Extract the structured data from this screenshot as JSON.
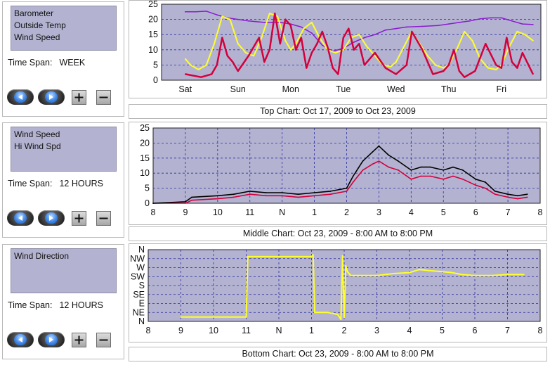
{
  "panels": [
    {
      "series_labels": [
        "Barometer",
        "Outside Temp",
        "Wind Speed"
      ],
      "time_span_label": "Time Span:",
      "time_span_value": "WEEK"
    },
    {
      "series_labels": [
        "Wind Speed",
        "Hi Wind Spd"
      ],
      "time_span_label": "Time Span:",
      "time_span_value": "12 HOURS"
    },
    {
      "series_labels": [
        "Wind Direction"
      ],
      "time_span_label": "Time Span:",
      "time_span_value": "12 HOURS"
    }
  ],
  "captions": {
    "top": "Top Chart:  Oct 17, 2009  to  Oct 23, 2009",
    "middle": "Middle Chart:  Oct 23, 2009 - 8:00 AM  to  8:00 PM",
    "bottom": "Bottom Chart:  Oct 23, 2009 - 8:00 AM  to  8:00 PM"
  },
  "colors": {
    "plot_bg": "#b3b3d1",
    "grid": "#2a2aa0",
    "barometer": "#8a1bd0",
    "outside_temp": "#ffff2a",
    "wind_speed": "#d4003c",
    "hi_wind": "#000000",
    "wind_direction": "#ffff2a"
  },
  "icons": {
    "prev": "left-arrow-icon",
    "next": "right-arrow-icon",
    "plus": "plus-icon",
    "minus": "minus-icon"
  },
  "chart_data": [
    {
      "type": "line",
      "x_tick_labels": [
        "Sat",
        "Sun",
        "Mon",
        "Tue",
        "Wed",
        "Thu",
        "Fri"
      ],
      "ylim": [
        0,
        25
      ],
      "y_ticks": [
        0,
        5,
        10,
        15,
        20,
        25
      ],
      "series": [
        {
          "name": "Barometer",
          "x": [
            0,
            0.2,
            0.4,
            0.6,
            0.8,
            1,
            1.2,
            1.5,
            1.8,
            2,
            2.2,
            2.4,
            2.6,
            2.8,
            3,
            3.2,
            3.4,
            3.6,
            3.8,
            4,
            4.2,
            4.5,
            4.8,
            5,
            5.2,
            5.4,
            5.6,
            5.8,
            6,
            6.2,
            6.4,
            6.6
          ],
          "values": [
            22.5,
            22.5,
            22.7,
            21.5,
            20.5,
            20,
            19.5,
            19,
            19,
            18.5,
            17.5,
            15.5,
            11.5,
            9.5,
            10.5,
            12.5,
            14,
            15,
            16.5,
            17,
            17.5,
            17.7,
            18,
            18.5,
            19,
            19.5,
            20.2,
            20.5,
            20.5,
            19.5,
            18.5,
            18.3
          ]
        },
        {
          "name": "Outside Temp",
          "x": [
            0,
            0.1,
            0.25,
            0.4,
            0.55,
            0.7,
            0.85,
            1,
            1.15,
            1.3,
            1.45,
            1.6,
            1.75,
            1.9,
            2,
            2.1,
            2.25,
            2.4,
            2.55,
            2.7,
            2.85,
            3,
            3.15,
            3.3,
            3.45,
            3.6,
            3.75,
            3.9,
            4,
            4.15,
            4.3,
            4.45,
            4.6,
            4.75,
            4.9,
            5,
            5.15,
            5.3,
            5.45,
            5.6,
            5.75,
            5.9,
            6,
            6.15,
            6.3,
            6.45,
            6.6
          ],
          "values": [
            7,
            5,
            3.5,
            5,
            12,
            21,
            20,
            12,
            9,
            8,
            14,
            22,
            21,
            13,
            10,
            12,
            17,
            19,
            14,
            10,
            9,
            10,
            14,
            15,
            11,
            8,
            5,
            4.5,
            6,
            11,
            16,
            12,
            8,
            5,
            4,
            5,
            10,
            16,
            13,
            7,
            4,
            3.5,
            5,
            11,
            16,
            15,
            13
          ]
        },
        {
          "name": "Wind Speed",
          "x": [
            0,
            0.3,
            0.5,
            0.6,
            0.7,
            0.8,
            0.9,
            1,
            1.2,
            1.4,
            1.5,
            1.6,
            1.7,
            1.8,
            1.9,
            2,
            2.1,
            2.2,
            2.3,
            2.4,
            2.5,
            2.6,
            2.7,
            2.8,
            2.9,
            3,
            3.1,
            3.2,
            3.3,
            3.4,
            3.6,
            3.8,
            4,
            4.2,
            4.3,
            4.5,
            4.7,
            4.9,
            5,
            5.1,
            5.2,
            5.3,
            5.5,
            5.7,
            5.9,
            6,
            6.1,
            6.2,
            6.3,
            6.4,
            6.6
          ],
          "values": [
            2,
            1,
            2,
            5,
            14,
            8,
            6,
            3,
            8,
            14,
            6,
            10,
            22,
            12,
            20,
            18,
            10,
            14,
            4,
            9,
            12,
            16,
            11,
            4,
            2,
            14,
            17,
            10,
            12,
            5,
            9,
            4,
            2,
            5,
            16,
            10,
            2,
            3,
            5,
            10,
            3,
            1,
            3,
            12,
            5,
            4,
            14,
            6,
            4,
            9,
            2
          ]
        }
      ]
    },
    {
      "type": "line",
      "x_tick_labels": [
        "8",
        "9",
        "10",
        "11",
        "N",
        "1",
        "2",
        "3",
        "4",
        "5",
        "6",
        "7",
        "8"
      ],
      "ylim": [
        0,
        25
      ],
      "y_ticks": [
        0,
        5,
        10,
        15,
        20,
        25
      ],
      "series": [
        {
          "name": "Wind Speed",
          "x": [
            8,
            9,
            9.2,
            10,
            10.5,
            11,
            11.5,
            12,
            12.5,
            13,
            13.5,
            14,
            14.2,
            14.5,
            14.8,
            15,
            15.3,
            15.6,
            16,
            16.3,
            16.6,
            17,
            17.3,
            17.6,
            18,
            18.3,
            18.6,
            19,
            19.3,
            19.6
          ],
          "values": [
            0,
            0,
            1,
            1.5,
            2,
            3,
            2.5,
            2.5,
            2,
            2.5,
            3,
            4,
            7,
            11,
            13,
            14,
            12,
            11,
            8,
            9,
            9,
            8,
            9,
            8,
            6,
            5,
            3,
            2,
            1.5,
            2
          ]
        },
        {
          "name": "Hi Wind Spd",
          "x": [
            8,
            9,
            9.2,
            10,
            10.5,
            11,
            11.5,
            12,
            12.5,
            13,
            13.5,
            14,
            14.2,
            14.5,
            14.8,
            15,
            15.3,
            15.6,
            16,
            16.3,
            16.6,
            17,
            17.3,
            17.6,
            18,
            18.3,
            18.6,
            19,
            19.3,
            19.6
          ],
          "values": [
            0,
            0.5,
            2,
            2.5,
            3,
            4,
            3.5,
            3.5,
            3,
            3.5,
            4,
            5,
            9,
            14,
            17,
            19,
            16,
            14,
            11,
            12,
            12,
            11,
            12,
            11,
            8,
            7,
            4,
            3,
            2.5,
            3
          ]
        }
      ]
    },
    {
      "type": "line",
      "x_tick_labels": [
        "8",
        "9",
        "10",
        "11",
        "N",
        "1",
        "2",
        "3",
        "4",
        "5",
        "6",
        "7",
        "8"
      ],
      "y_tick_labels": [
        "N",
        "NE",
        "E",
        "SE",
        "S",
        "SW",
        "W",
        "NW",
        "N"
      ],
      "ylim": [
        0,
        360
      ],
      "series": [
        {
          "name": "Wind Direction",
          "x": [
            9,
            11,
            11.05,
            11.5,
            12,
            12.5,
            13,
            13.05,
            13.1,
            13.5,
            13.8,
            13.9,
            13.95,
            14,
            14.05,
            14.1,
            14.2,
            14.5,
            15,
            15.5,
            16,
            16.3,
            16.6,
            17,
            17.3,
            17.6,
            18,
            18.5,
            19,
            19.5
          ],
          "values": [
            22,
            22,
            325,
            325,
            325,
            325,
            325,
            335,
            45,
            45,
            35,
            10,
            330,
            20,
            280,
            250,
            230,
            230,
            230,
            240,
            245,
            260,
            255,
            250,
            245,
            235,
            230,
            230,
            235,
            235
          ]
        }
      ]
    }
  ]
}
